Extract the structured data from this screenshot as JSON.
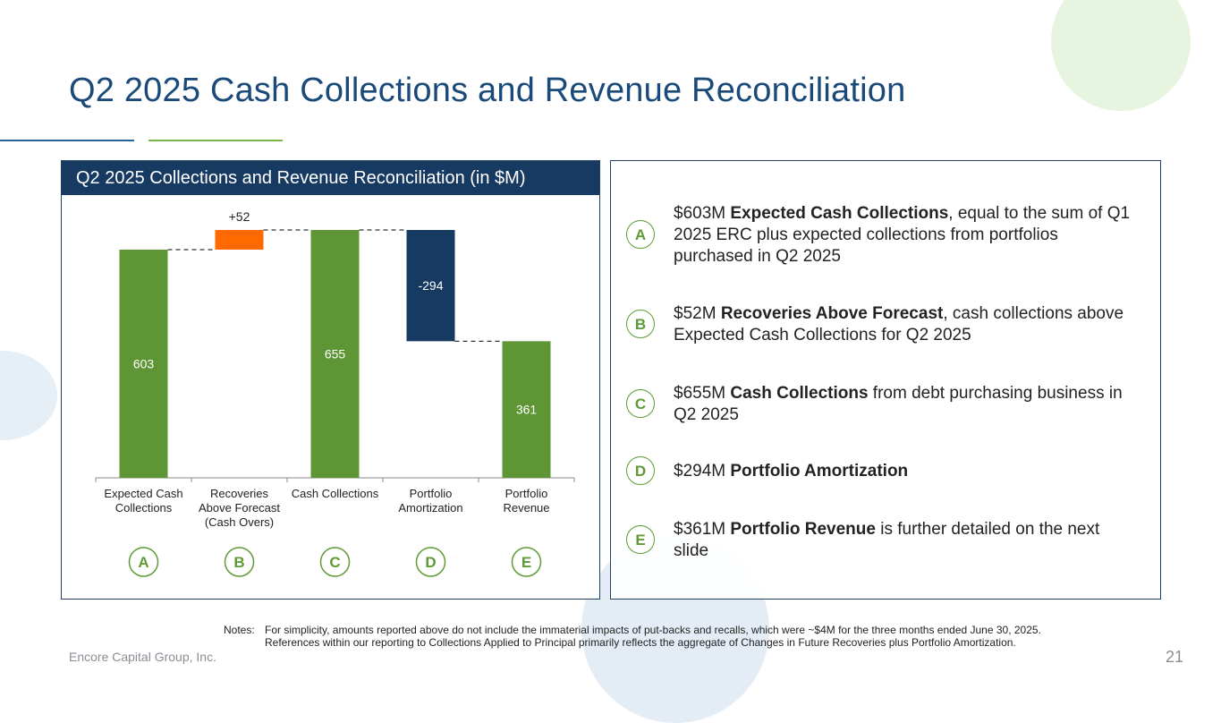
{
  "title": "Q2 2025 Cash Collections and Revenue Reconciliation",
  "chart_header": "Q2 2025 Collections and Revenue Reconciliation (in $M)",
  "colors": {
    "green": "#5e9535",
    "orange": "#ff6a00",
    "navy": "#173a62",
    "badge": "#5e9b35"
  },
  "chart_data": {
    "type": "waterfall",
    "title": "Q2 2025 Collections and Revenue Reconciliation (in $M)",
    "ylim": [
      0,
      720
    ],
    "bars": [
      {
        "category": "Expected Cash Collections",
        "start": 0,
        "end": 603,
        "label": "603",
        "kind": "total",
        "badge": "A"
      },
      {
        "category": "Recoveries Above Forecast (Cash Overs)",
        "start": 603,
        "end": 655,
        "label": "+52",
        "kind": "increase",
        "badge": "B"
      },
      {
        "category": "Cash Collections",
        "start": 0,
        "end": 655,
        "label": "655",
        "kind": "total",
        "badge": "C"
      },
      {
        "category": "Portfolio Amortization",
        "start": 655,
        "end": 361,
        "label": "-294",
        "kind": "decrease",
        "badge": "D"
      },
      {
        "category": "Portfolio Revenue",
        "start": 0,
        "end": 361,
        "label": "361",
        "kind": "total",
        "badge": "E"
      }
    ],
    "category_lines": [
      [
        "Expected Cash",
        "Collections"
      ],
      [
        "Recoveries",
        "Above Forecast",
        "(Cash Overs)"
      ],
      [
        "Cash Collections"
      ],
      [
        "Portfolio",
        "Amortization"
      ],
      [
        "Portfolio",
        "Revenue"
      ]
    ]
  },
  "items": [
    {
      "badge": "A",
      "amount": "$603M ",
      "bold": "Expected Cash Collections",
      "rest": ", equal to the sum of Q1 2025 ERC plus expected collections from portfolios purchased in Q2 2025"
    },
    {
      "badge": "B",
      "amount": "$52M ",
      "bold": "Recoveries Above Forecast",
      "rest": ", cash collections above Expected Cash Collections for Q2 2025"
    },
    {
      "badge": "C",
      "amount": "$655M ",
      "bold": "Cash Collections",
      "rest": " from debt purchasing business in Q2 2025"
    },
    {
      "badge": "D",
      "amount": "$294M ",
      "bold": "Portfolio Amortization",
      "rest": ""
    },
    {
      "badge": "E",
      "amount": "$361M ",
      "bold": "Portfolio Revenue",
      "rest": " is further detailed on the next slide"
    }
  ],
  "notes": {
    "label": "Notes:",
    "line1": "For simplicity, amounts reported above do not include the immaterial impacts of put-backs and recalls, which were ~$4M for the three months ended June 30, 2025.",
    "line2": "References within our reporting to Collections Applied to Principal primarily reflects the aggregate of Changes in Future Recoveries plus Portfolio Amortization."
  },
  "footer": {
    "company": "Encore Capital Group, Inc.",
    "page": "21"
  }
}
